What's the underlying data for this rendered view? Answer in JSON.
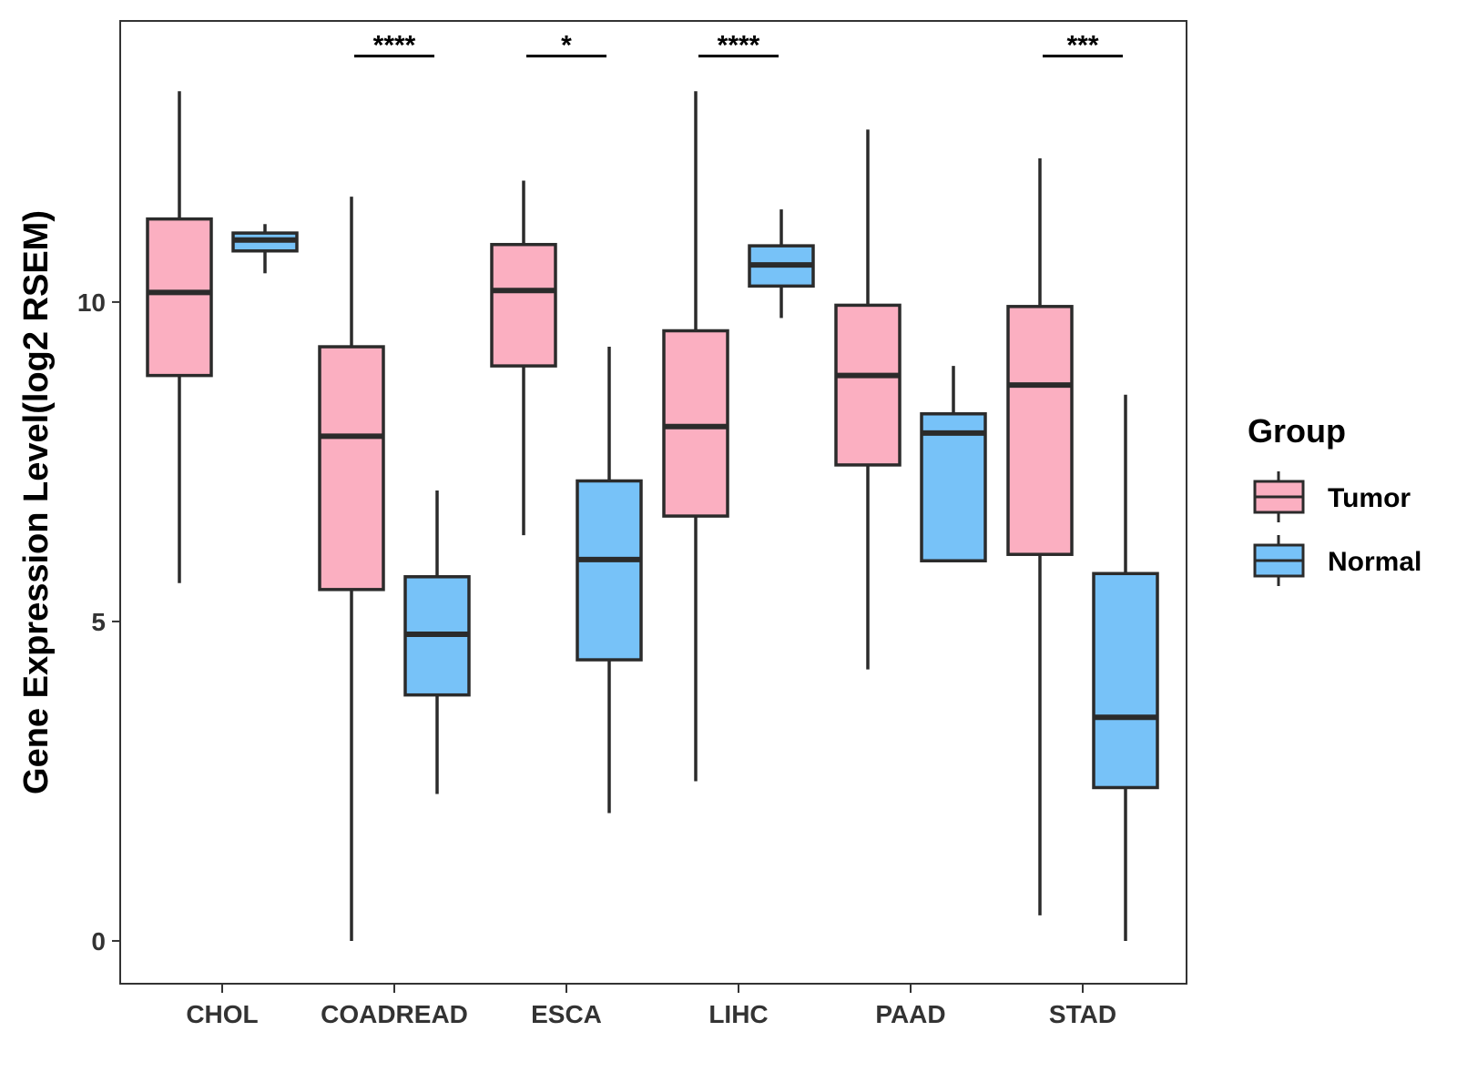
{
  "chart_data": {
    "type": "boxplot",
    "title": "",
    "xlabel": "",
    "ylabel": "Gene Expression Level(log2 RSEM)",
    "ylim": [
      -0.67,
      14.4
    ],
    "yticks": [
      0,
      5,
      10
    ],
    "categories": [
      "CHOL",
      "COADREAD",
      "ESCA",
      "LIHC",
      "PAAD",
      "STAD"
    ],
    "legend": {
      "title": "Group",
      "position": "right",
      "entries": [
        {
          "name": "Tumor",
          "color": "#FBAFC1"
        },
        {
          "name": "Normal",
          "color": "#77C2F8"
        }
      ]
    },
    "series": [
      {
        "name": "Tumor",
        "color": "#FBAFC1",
        "boxes": [
          {
            "min": 5.6,
            "q1": 8.85,
            "median": 10.15,
            "q3": 11.3,
            "max": 13.3
          },
          {
            "min": 0.0,
            "q1": 5.5,
            "median": 7.9,
            "q3": 9.3,
            "max": 11.65
          },
          {
            "min": 6.35,
            "q1": 9.0,
            "median": 10.18,
            "q3": 10.9,
            "max": 11.9
          },
          {
            "min": 2.5,
            "q1": 6.65,
            "median": 8.05,
            "q3": 9.55,
            "max": 13.3
          },
          {
            "min": 4.25,
            "q1": 7.45,
            "median": 8.85,
            "q3": 9.95,
            "max": 12.7
          },
          {
            "min": 0.4,
            "q1": 6.05,
            "median": 8.7,
            "q3": 9.93,
            "max": 12.25
          }
        ]
      },
      {
        "name": "Normal",
        "color": "#77C2F8",
        "boxes": [
          {
            "min": 10.45,
            "q1": 10.8,
            "median": 10.97,
            "q3": 11.08,
            "max": 11.22
          },
          {
            "min": 2.3,
            "q1": 3.85,
            "median": 4.8,
            "q3": 5.7,
            "max": 7.05
          },
          {
            "min": 2.0,
            "q1": 4.4,
            "median": 5.97,
            "q3": 7.2,
            "max": 9.3
          },
          {
            "min": 9.75,
            "q1": 10.25,
            "median": 10.58,
            "q3": 10.88,
            "max": 11.45
          },
          {
            "min": 5.95,
            "q1": 5.95,
            "median": 7.95,
            "q3": 8.25,
            "max": 9.0
          },
          {
            "min": 0.0,
            "q1": 2.4,
            "median": 3.5,
            "q3": 5.75,
            "max": 8.55
          }
        ]
      }
    ],
    "significance": [
      {
        "category": "COADREAD",
        "label": "****"
      },
      {
        "category": "ESCA",
        "label": "*"
      },
      {
        "category": "LIHC",
        "label": "****"
      },
      {
        "category": "STAD",
        "label": "***"
      }
    ],
    "significance_y": 13.85,
    "grid": false
  }
}
